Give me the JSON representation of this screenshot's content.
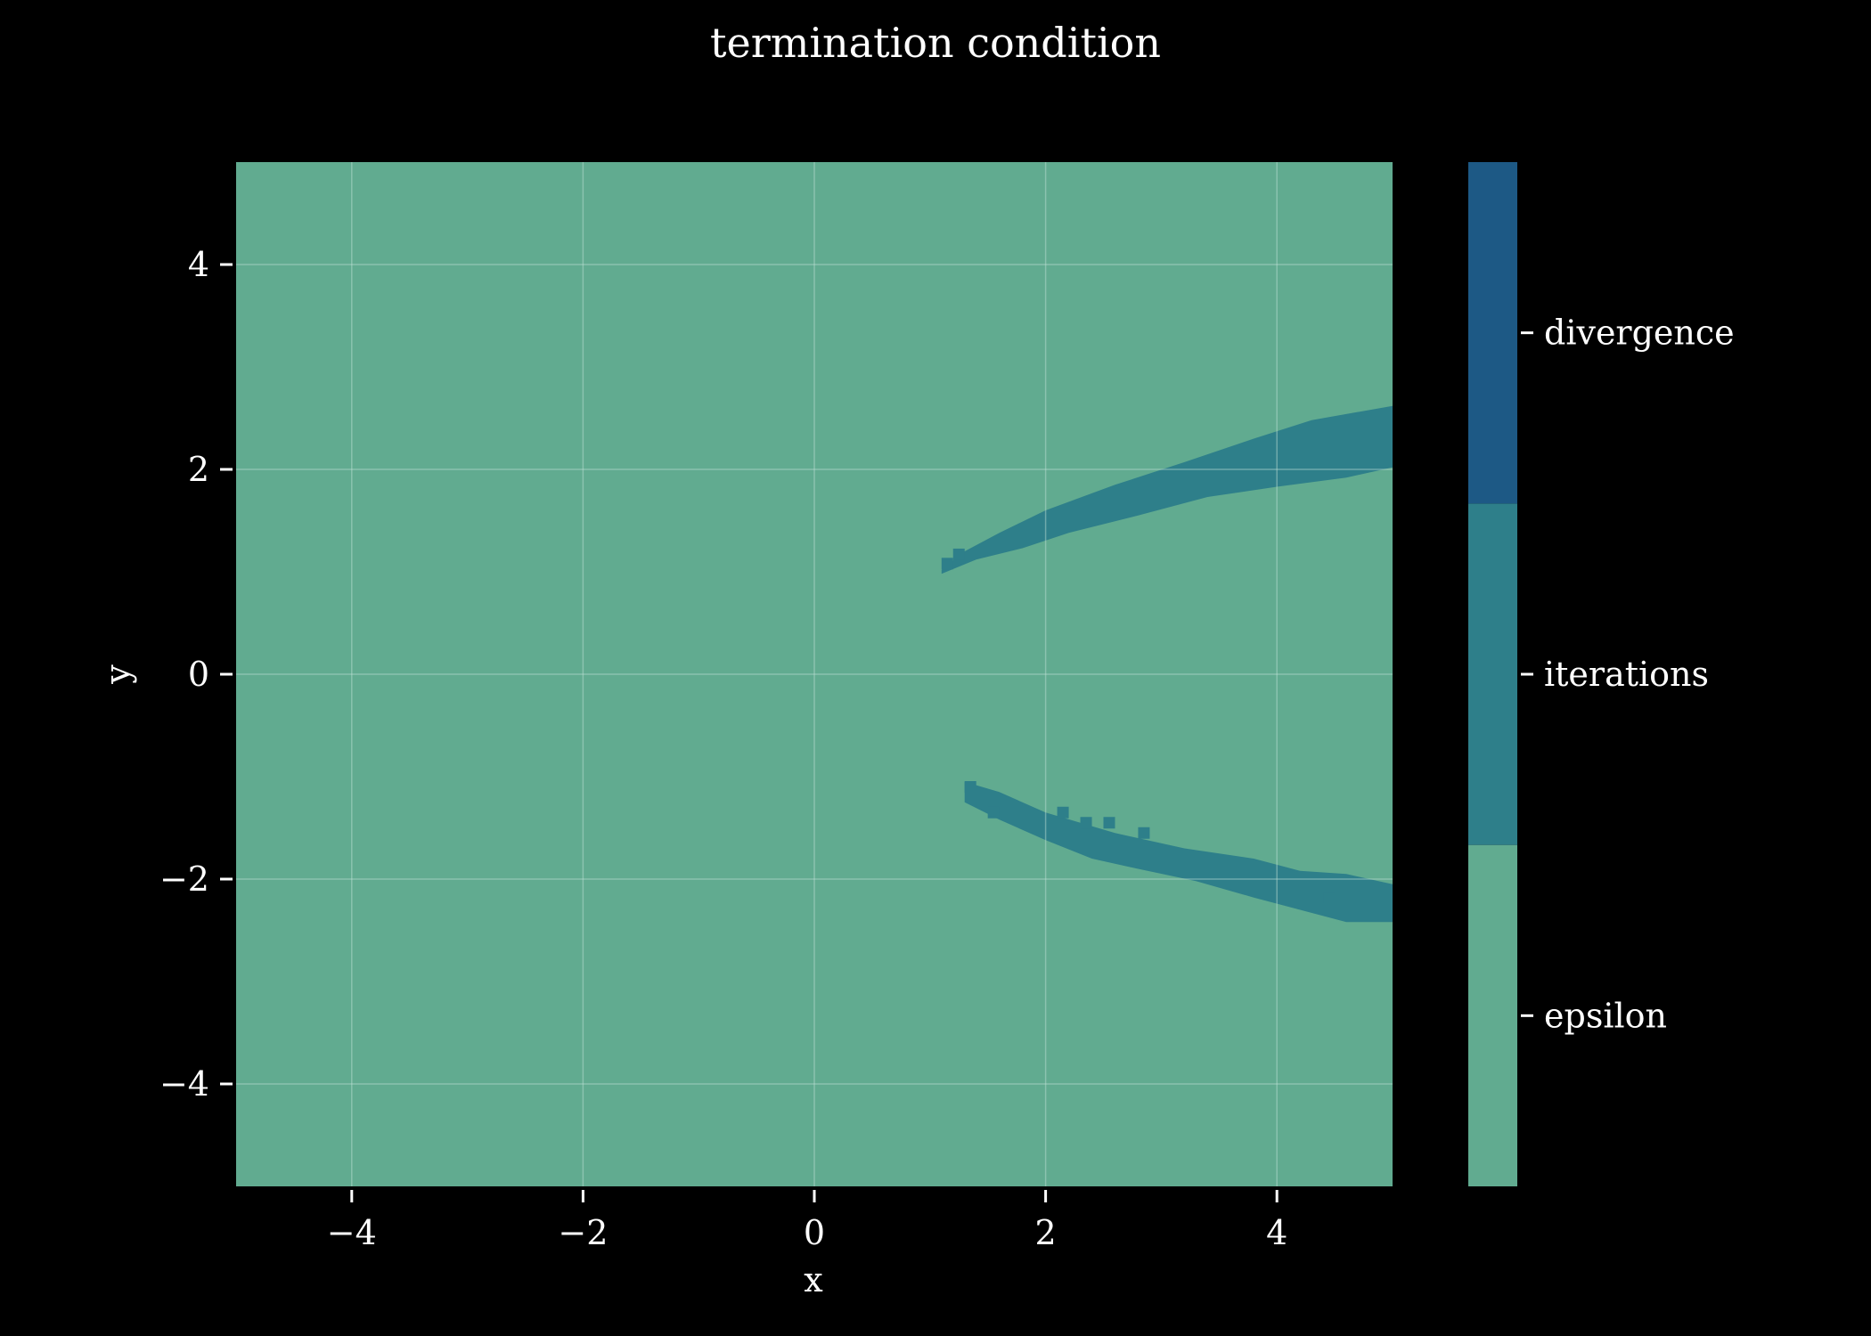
{
  "chart_data": {
    "type": "heatmap",
    "title": "termination condition",
    "xlabel": "x",
    "ylabel": "y",
    "xlim": [
      -5,
      5
    ],
    "ylim": [
      -5,
      5
    ],
    "xticks": [
      -4,
      -2,
      0,
      2,
      4
    ],
    "yticks": [
      -4,
      -2,
      0,
      2,
      4
    ],
    "grid": true,
    "categories": [
      "epsilon",
      "iterations",
      "divergence"
    ],
    "colors": {
      "epsilon": "#61ab90",
      "iterations": "#2e7f8a",
      "divergence": "#1d5985",
      "grid": "#bfe0d4",
      "background": "#000000"
    },
    "background_category": "epsilon",
    "colorbar": {
      "labels": [
        "epsilon",
        "iterations",
        "divergence"
      ],
      "placement": "right"
    },
    "regions": [
      {
        "category": "iterations",
        "name_hint": "upper band",
        "polygon": [
          [
            1.1,
            1.02
          ],
          [
            1.3,
            1.2
          ],
          [
            1.6,
            1.38
          ],
          [
            2.0,
            1.6
          ],
          [
            2.6,
            1.85
          ],
          [
            3.2,
            2.07
          ],
          [
            3.8,
            2.3
          ],
          [
            4.3,
            2.48
          ],
          [
            5.0,
            2.62
          ],
          [
            5.0,
            2.02
          ],
          [
            4.6,
            1.92
          ],
          [
            4.0,
            1.83
          ],
          [
            3.4,
            1.73
          ],
          [
            2.8,
            1.55
          ],
          [
            2.2,
            1.38
          ],
          [
            1.8,
            1.23
          ],
          [
            1.4,
            1.12
          ],
          [
            1.1,
            0.98
          ]
        ]
      },
      {
        "category": "iterations",
        "name_hint": "lower band",
        "polygon": [
          [
            1.3,
            -1.05
          ],
          [
            1.6,
            -1.15
          ],
          [
            2.0,
            -1.35
          ],
          [
            2.6,
            -1.55
          ],
          [
            3.2,
            -1.7
          ],
          [
            3.8,
            -1.8
          ],
          [
            4.2,
            -1.92
          ],
          [
            4.6,
            -1.95
          ],
          [
            5.0,
            -2.05
          ],
          [
            5.0,
            -2.42
          ],
          [
            4.6,
            -2.42
          ],
          [
            4.2,
            -2.3
          ],
          [
            3.8,
            -2.18
          ],
          [
            3.3,
            -2.02
          ],
          [
            2.8,
            -1.9
          ],
          [
            2.4,
            -1.8
          ],
          [
            2.0,
            -1.62
          ],
          [
            1.6,
            -1.42
          ],
          [
            1.3,
            -1.25
          ]
        ]
      }
    ],
    "speckles": [
      {
        "category": "iterations",
        "x": 1.15,
        "y": 1.08
      },
      {
        "category": "iterations",
        "x": 1.25,
        "y": 1.17
      },
      {
        "category": "iterations",
        "x": 1.35,
        "y": -1.1
      },
      {
        "category": "iterations",
        "x": 1.55,
        "y": -1.35
      },
      {
        "category": "iterations",
        "x": 2.15,
        "y": -1.35
      },
      {
        "category": "iterations",
        "x": 2.35,
        "y": -1.45
      },
      {
        "category": "iterations",
        "x": 2.55,
        "y": -1.45
      },
      {
        "category": "iterations",
        "x": 2.85,
        "y": -1.55
      },
      {
        "category": "iterations",
        "x": 4.45,
        "y": -2.18
      }
    ]
  }
}
